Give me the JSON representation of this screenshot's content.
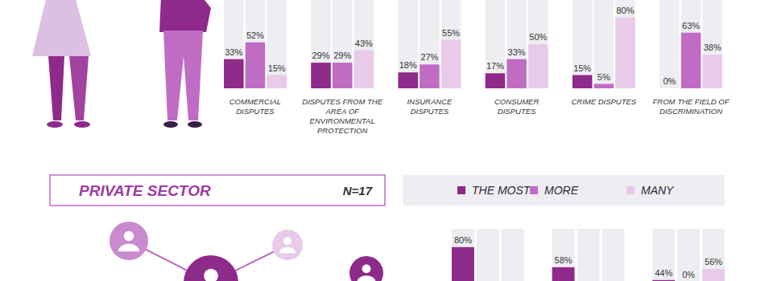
{
  "chart_data": [
    {
      "type": "bar",
      "categories": [
        "COMMERCIAL DISPUTES",
        "DISPUTES FROM THE AREA OF ENVIRONMENTAL PROTECTION",
        "INSURANCE DISPUTES",
        "CONSUMER DISPUTES",
        "CRIME DISPUTES",
        "FROM THE FIELD OF DISCRIMINATION"
      ],
      "series": [
        {
          "color": "#8e2a8a",
          "values": [
            33,
            29,
            18,
            17,
            15,
            0
          ],
          "value_labels": [
            "33%",
            "29%",
            "18%",
            "17%",
            "15%",
            "0%"
          ]
        },
        {
          "color": "#c06cc4",
          "values": [
            52,
            29,
            27,
            33,
            5,
            63
          ],
          "value_labels": [
            "52%",
            "29%",
            "27%",
            "33%",
            "5%",
            "63%"
          ]
        },
        {
          "color": "#e7cbe9",
          "values": [
            15,
            43,
            55,
            50,
            80,
            38
          ],
          "value_labels": [
            "15%",
            "43%",
            "55%",
            "50%",
            "80%",
            "38%"
          ]
        }
      ],
      "ylim": [
        0,
        100
      ],
      "data_labels": true,
      "tick_labels": "x"
    },
    {
      "type": "bar",
      "title": "PRIVATE SECTOR",
      "subtitle": "N=17",
      "categories": [
        null,
        null,
        null
      ],
      "series": [
        {
          "name": "THE MOST",
          "color": "#8e2a8a",
          "values": [
            80,
            58,
            44
          ],
          "value_labels": [
            "80%",
            "58%",
            "44%"
          ]
        },
        {
          "name": "MORE",
          "color": "#c06cc4",
          "values": [
            null,
            null,
            0
          ],
          "value_labels": [
            null,
            null,
            "0%"
          ]
        },
        {
          "name": "MANY",
          "color": "#e7cbe9",
          "values": [
            null,
            null,
            56
          ],
          "value_labels": [
            null,
            null,
            "56%"
          ]
        }
      ],
      "ylim": [
        0,
        100
      ],
      "data_labels": true,
      "tick_labels": false,
      "legend": "top"
    }
  ]
}
